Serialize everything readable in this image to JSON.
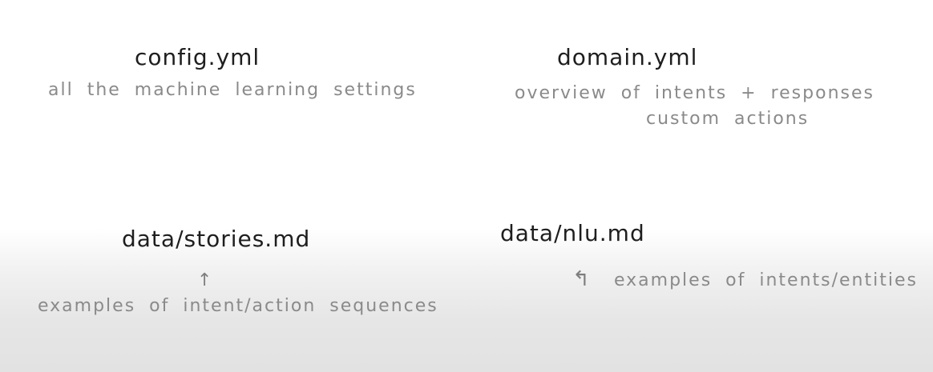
{
  "config": {
    "filename": "config.yml",
    "description": "all the machine learning settings"
  },
  "domain": {
    "filename": "domain.yml",
    "description_line1": "overview of intents + responses",
    "description_line2": "custom actions"
  },
  "stories": {
    "filename": "data/stories.md",
    "arrow": "↑",
    "description": "examples of intent/action sequences"
  },
  "nlu": {
    "filename": "data/nlu.md",
    "arrow": "↰",
    "description": "examples of intents/entities"
  }
}
